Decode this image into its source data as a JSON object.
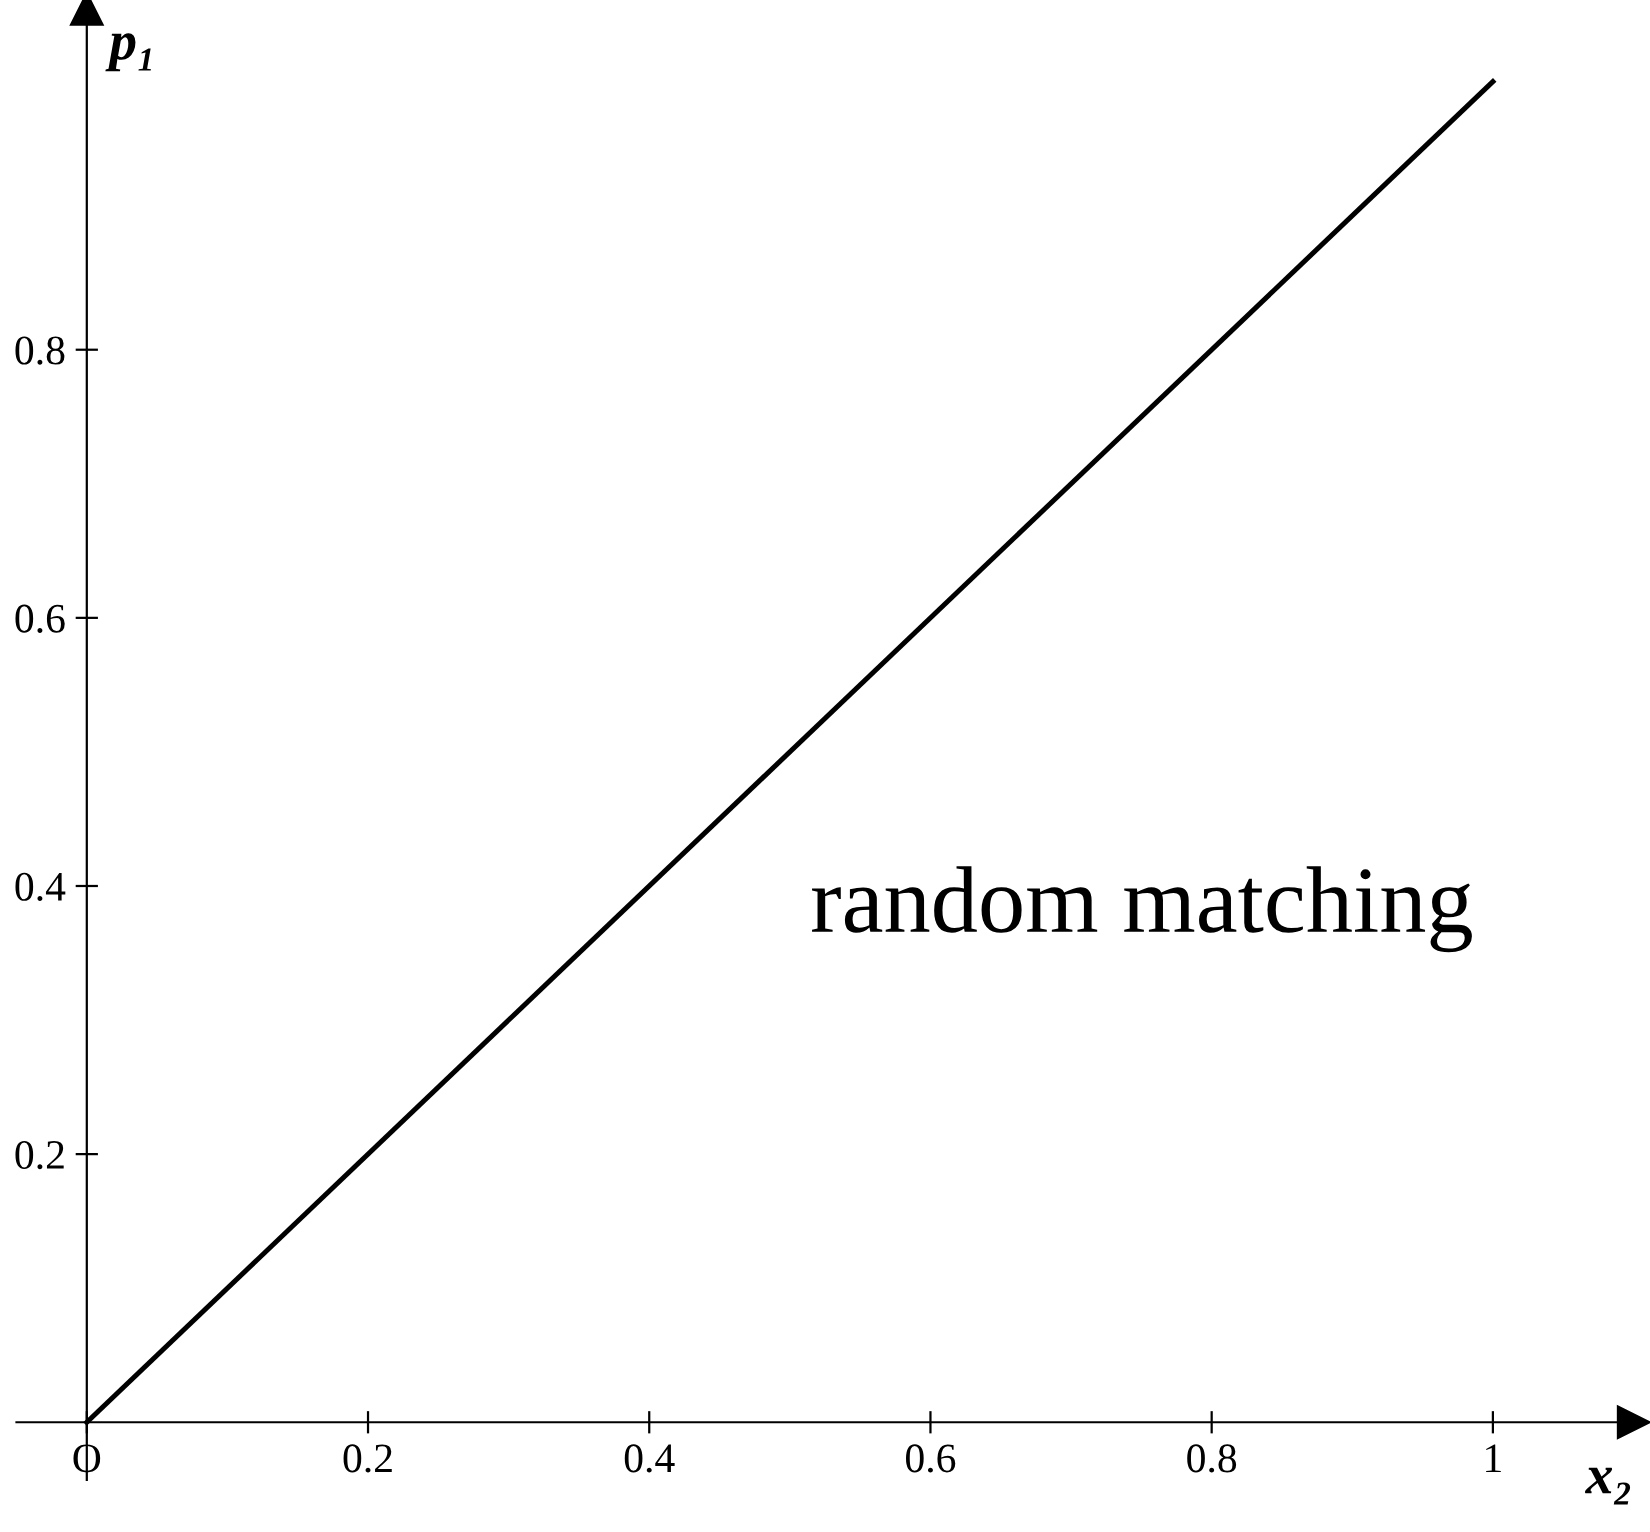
{
  "chart_data": {
    "type": "line",
    "x": [
      0,
      1
    ],
    "series": [
      {
        "color": "#000000",
        "values": [
          0,
          1
        ]
      }
    ],
    "xlabel": "x₂",
    "ylabel": "p₁",
    "annotations": [
      "random matching"
    ],
    "xlim": [
      -0.05,
      1.1
    ],
    "ylim": [
      -0.043,
      1.054
    ],
    "xticks": [
      {
        "value": 0,
        "label": "O"
      },
      0.2,
      0.4,
      0.6,
      0.8,
      1
    ],
    "yticks": [
      0.2,
      0.4,
      0.6,
      0.8
    ],
    "grid": false,
    "legend": false,
    "marker": "none",
    "line_style": "solid"
  }
}
